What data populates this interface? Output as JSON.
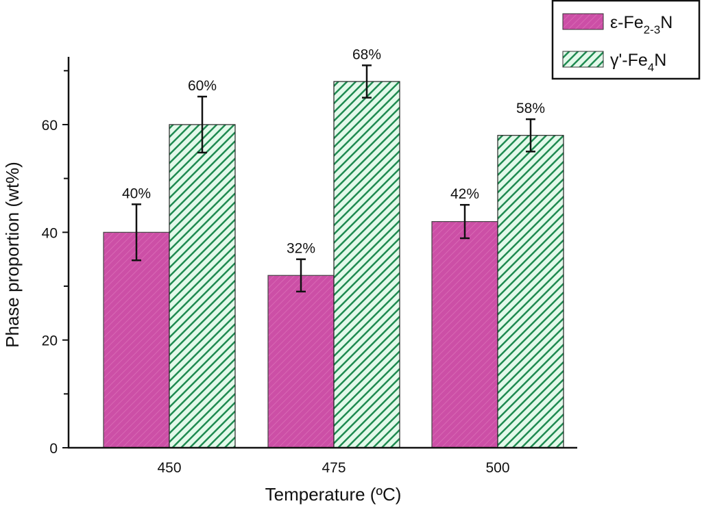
{
  "chart_data": {
    "type": "bar",
    "title": "",
    "xlabel": "Temperature (ºC)",
    "ylabel": "Phase proportion (wt%)",
    "categories": [
      "450",
      "475",
      "500"
    ],
    "ylim": [
      0,
      72
    ],
    "yticks": [
      0,
      20,
      40,
      60
    ],
    "yticks_minor": [
      10,
      30,
      50,
      70
    ],
    "grid": false,
    "legend_position": "top-right",
    "series": [
      {
        "name": "ε-Fe2-3N",
        "name_main": "ε-Fe",
        "name_sub": "2-3",
        "name_end": "N",
        "color": "#cc4fa6",
        "hatch_color": "#d869b4",
        "values": [
          40,
          32,
          42
        ],
        "errors": [
          5.2,
          3,
          3.1
        ],
        "labels": [
          "40%",
          "32%",
          "42%"
        ]
      },
      {
        "name": "γ'-Fe4N",
        "name_main": "γ'-Fe",
        "name_sub": "4",
        "name_end": "N",
        "color": "#1e8a50",
        "hatch_color": "#e3f9ea",
        "values": [
          60,
          68,
          58
        ],
        "errors": [
          5.2,
          3,
          3
        ],
        "labels": [
          "60%",
          "68%",
          "58%"
        ]
      }
    ]
  }
}
